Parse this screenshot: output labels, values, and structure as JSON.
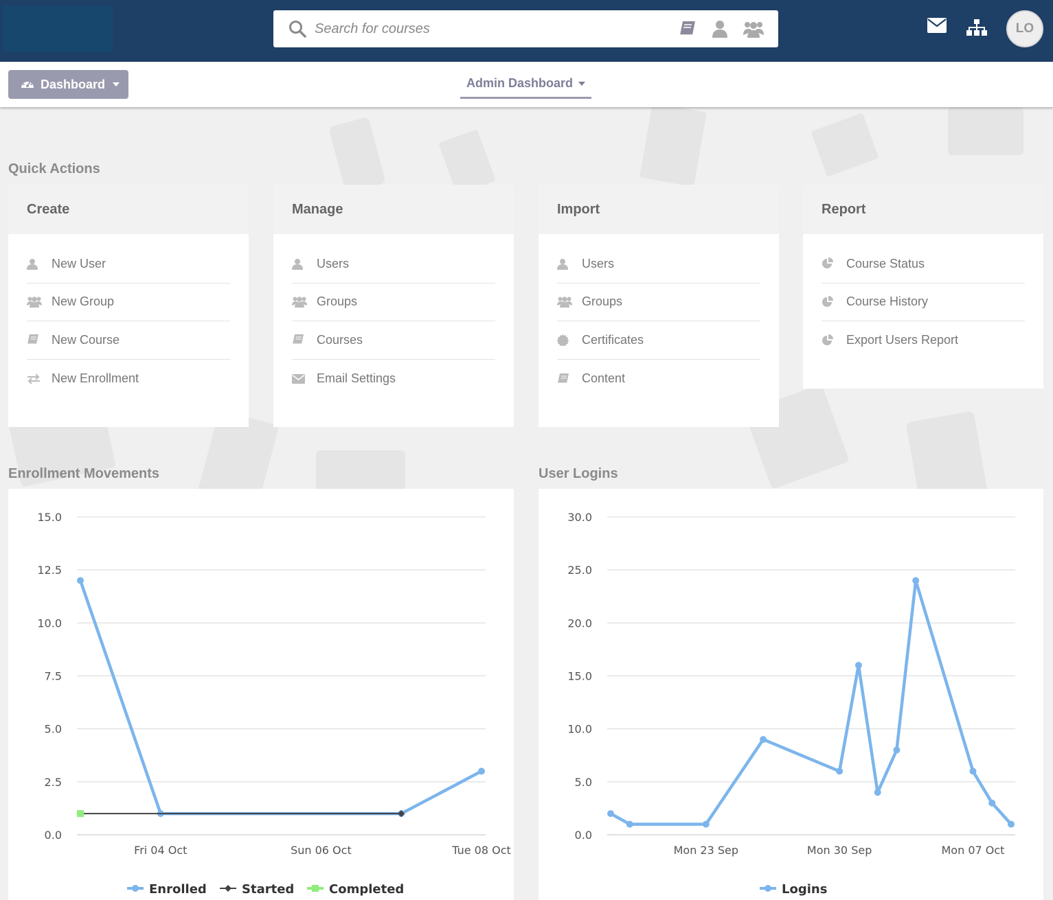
{
  "header": {
    "search_placeholder": "Search for courses",
    "search_icons": [
      "book-icon",
      "user-icon",
      "users-icon"
    ],
    "right_icons": [
      "envelope-icon",
      "sitemap-icon"
    ],
    "avatar_initials": "LO"
  },
  "subbar": {
    "dashboard_label": "Dashboard",
    "admin_dashboard_label": "Admin Dashboard"
  },
  "quick_actions": {
    "title": "Quick Actions",
    "cards": [
      {
        "title": "Create",
        "items": [
          {
            "label": "New User",
            "icon": "user-icon"
          },
          {
            "label": "New Group",
            "icon": "users-icon"
          },
          {
            "label": "New Course",
            "icon": "book-icon"
          },
          {
            "label": "New Enrollment",
            "icon": "exchange-icon"
          }
        ]
      },
      {
        "title": "Manage",
        "items": [
          {
            "label": "Users",
            "icon": "user-icon"
          },
          {
            "label": "Groups",
            "icon": "users-icon"
          },
          {
            "label": "Courses",
            "icon": "book-icon"
          },
          {
            "label": "Email Settings",
            "icon": "envelope-icon"
          }
        ]
      },
      {
        "title": "Import",
        "items": [
          {
            "label": "Users",
            "icon": "user-icon"
          },
          {
            "label": "Groups",
            "icon": "users-icon"
          },
          {
            "label": "Certificates",
            "icon": "certificate-icon"
          },
          {
            "label": "Content",
            "icon": "book-icon"
          }
        ]
      },
      {
        "title": "Report",
        "items": [
          {
            "label": "Course Status",
            "icon": "pie-chart-icon"
          },
          {
            "label": "Course History",
            "icon": "pie-chart-icon"
          },
          {
            "label": "Export Users Report",
            "icon": "pie-chart-icon"
          }
        ]
      }
    ]
  },
  "colors": {
    "header": "#1e3f66",
    "enrolled": "#7cb5ec",
    "started": "#434348",
    "completed": "#90ed7d"
  },
  "chart_titles": [
    "Enrollment Movements",
    "User Logins"
  ],
  "chart_data": [
    {
      "type": "line",
      "title": "Enrollment Movements",
      "x": [
        "Thu 03 Oct",
        "Fri 04 Oct",
        "Sat 05 Oct",
        "Sun 06 Oct",
        "Mon 07 Oct",
        "Tue 08 Oct"
      ],
      "x_tick_labels": [
        "Fri 04 Oct",
        "Sun 06 Oct",
        "Tue 08 Oct"
      ],
      "y_ticks": [
        "0.0",
        "2.5",
        "5.0",
        "7.5",
        "10.0",
        "12.5",
        "15.0"
      ],
      "ylim": [
        0,
        15
      ],
      "grid": true,
      "legend_position": "bottom",
      "series": [
        {
          "name": "Enrolled",
          "marker": "circle",
          "points": [
            [
              "Thu 03 Oct",
              12
            ],
            [
              "Fri 04 Oct",
              1
            ],
            [
              "Mon 07 Oct",
              1
            ],
            [
              "Tue 08 Oct",
              3
            ]
          ]
        },
        {
          "name": "Started",
          "marker": "diamond",
          "points": [
            [
              "Thu 03 Oct",
              1
            ],
            [
              "Mon 07 Oct",
              1
            ]
          ]
        },
        {
          "name": "Completed",
          "marker": "square",
          "points": [
            [
              "Thu 03 Oct",
              1
            ]
          ]
        }
      ]
    },
    {
      "type": "line",
      "title": "User Logins",
      "x_tick_labels": [
        "Mon 23 Sep",
        "Mon 30 Sep",
        "Mon 07 Oct"
      ],
      "y_ticks": [
        "0.0",
        "5.0",
        "10.0",
        "15.0",
        "20.0",
        "25.0",
        "30.0"
      ],
      "ylim": [
        0,
        30
      ],
      "grid": true,
      "legend_position": "bottom",
      "series": [
        {
          "name": "Logins",
          "marker": "circle",
          "points": [
            [
              "Wed 18 Sep",
              2
            ],
            [
              "Thu 19 Sep",
              1
            ],
            [
              "Mon 23 Sep",
              1
            ],
            [
              "Thu 26 Sep",
              9
            ],
            [
              "Mon 30 Sep",
              6
            ],
            [
              "Tue 01 Oct",
              16
            ],
            [
              "Wed 02 Oct",
              4
            ],
            [
              "Thu 03 Oct",
              8
            ],
            [
              "Fri 04 Oct",
              24
            ],
            [
              "Mon 07 Oct",
              6
            ],
            [
              "Tue 08 Oct",
              3
            ],
            [
              "Wed 09 Oct",
              1
            ]
          ]
        }
      ]
    }
  ]
}
